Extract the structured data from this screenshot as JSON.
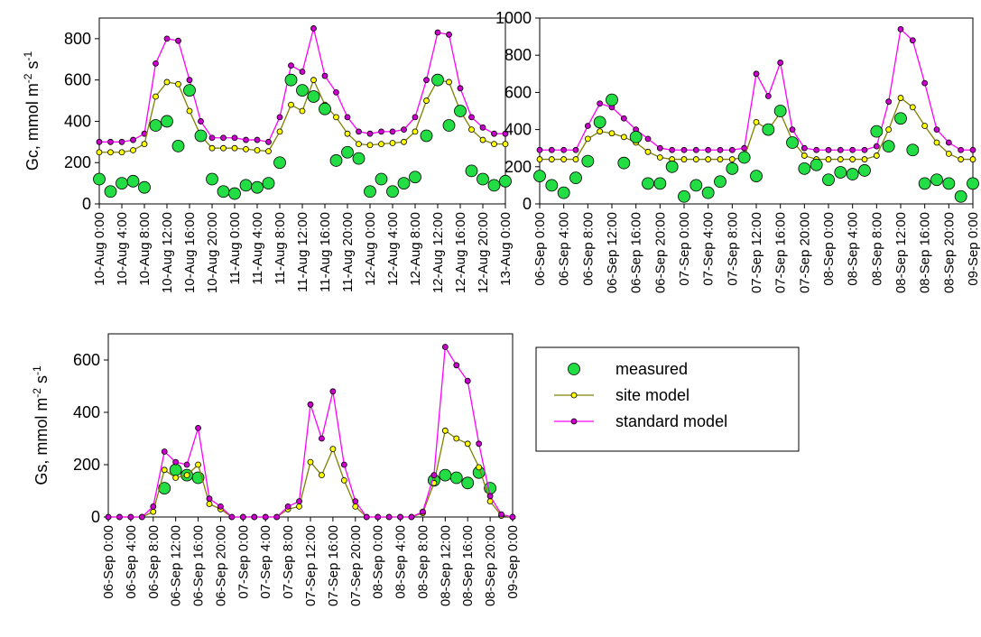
{
  "chart_data": [
    {
      "type": "line",
      "y_label": [
        "Gc, mmol m",
        "-2",
        " s",
        "-1"
      ],
      "x": [
        0,
        2,
        4,
        6,
        8,
        10,
        12,
        14,
        16,
        18,
        20,
        22,
        24,
        26,
        28,
        30,
        32,
        34,
        36,
        38,
        40,
        42,
        44,
        46,
        48,
        50,
        52,
        54,
        56,
        58,
        60,
        62,
        64,
        66,
        68,
        70,
        72
      ],
      "xlim": [
        0,
        72
      ],
      "xticks": [
        {
          "value": 0,
          "label": "10-Aug 0:00"
        },
        {
          "value": 4,
          "label": "10-Aug 4:00"
        },
        {
          "value": 8,
          "label": "10-Aug 8:00"
        },
        {
          "value": 12,
          "label": "10-Aug 12:00"
        },
        {
          "value": 16,
          "label": "10-Aug 16:00"
        },
        {
          "value": 20,
          "label": "10-Aug 20:00"
        },
        {
          "value": 24,
          "label": "11-Aug 0:00"
        },
        {
          "value": 28,
          "label": "11-Aug 4:00"
        },
        {
          "value": 32,
          "label": "11-Aug 8:00"
        },
        {
          "value": 36,
          "label": "11-Aug 12:00"
        },
        {
          "value": 40,
          "label": "11-Aug 16:00"
        },
        {
          "value": 44,
          "label": "11-Aug 20:00"
        },
        {
          "value": 48,
          "label": "12-Aug 0:00"
        },
        {
          "value": 52,
          "label": "12-Aug 4:00"
        },
        {
          "value": 56,
          "label": "12-Aug 8:00"
        },
        {
          "value": 60,
          "label": "12-Aug 12:00"
        },
        {
          "value": 64,
          "label": "12-Aug 16:00"
        },
        {
          "value": 68,
          "label": "12-Aug 20:00"
        },
        {
          "value": 72,
          "label": "13-Aug 0:00"
        }
      ],
      "ylim": [
        0,
        900
      ],
      "yticks": [
        0,
        200,
        400,
        600,
        800
      ],
      "series": [
        {
          "style": "line-markers",
          "color": "#ff00ff",
          "marker_color": "#cc00cc",
          "values": [
            300,
            300,
            300,
            310,
            340,
            680,
            800,
            790,
            600,
            400,
            320,
            320,
            320,
            310,
            310,
            300,
            420,
            670,
            640,
            850,
            620,
            540,
            420,
            350,
            340,
            350,
            350,
            360,
            420,
            600,
            830,
            820,
            560,
            420,
            370,
            340,
            340
          ]
        },
        {
          "style": "line-markers",
          "color": "#808000",
          "marker_color": "#ffff00",
          "values": [
            250,
            250,
            250,
            260,
            290,
            520,
            590,
            580,
            450,
            330,
            270,
            270,
            270,
            265,
            260,
            255,
            350,
            480,
            450,
            600,
            480,
            420,
            340,
            290,
            285,
            290,
            295,
            300,
            350,
            500,
            600,
            590,
            450,
            360,
            310,
            290,
            290
          ]
        },
        {
          "style": "markers",
          "color": "#22dd44",
          "marker_color": "#22dd44",
          "values": [
            120,
            60,
            100,
            110,
            80,
            380,
            400,
            280,
            550,
            330,
            120,
            60,
            50,
            90,
            80,
            100,
            200,
            600,
            550,
            520,
            460,
            210,
            250,
            220,
            60,
            120,
            60,
            100,
            130,
            330,
            600,
            380,
            450,
            160,
            120,
            90,
            110
          ]
        }
      ]
    },
    {
      "type": "line",
      "x": [
        0,
        2,
        4,
        6,
        8,
        10,
        12,
        14,
        16,
        18,
        20,
        22,
        24,
        26,
        28,
        30,
        32,
        34,
        36,
        38,
        40,
        42,
        44,
        46,
        48,
        50,
        52,
        54,
        56,
        58,
        60,
        62,
        64,
        66,
        68,
        70,
        72
      ],
      "xlim": [
        0,
        72
      ],
      "xticks": [
        {
          "value": 0,
          "label": "06-Sep 0:00"
        },
        {
          "value": 4,
          "label": "06-Sep 4:00"
        },
        {
          "value": 8,
          "label": "06-Sep 8:00"
        },
        {
          "value": 12,
          "label": "06-Sep 12:00"
        },
        {
          "value": 16,
          "label": "06-Sep 16:00"
        },
        {
          "value": 20,
          "label": "06-Sep 20:00"
        },
        {
          "value": 24,
          "label": "07-Sep 0:00"
        },
        {
          "value": 28,
          "label": "07-Sep 4:00"
        },
        {
          "value": 32,
          "label": "07-Sep 8:00"
        },
        {
          "value": 36,
          "label": "07-Sep 12:00"
        },
        {
          "value": 40,
          "label": "07-Sep 16:00"
        },
        {
          "value": 44,
          "label": "07-Sep 20:00"
        },
        {
          "value": 48,
          "label": "08-Sep 0:00"
        },
        {
          "value": 52,
          "label": "08-Sep 4:00"
        },
        {
          "value": 56,
          "label": "08-Sep 8:00"
        },
        {
          "value": 60,
          "label": "08-Sep 12:00"
        },
        {
          "value": 64,
          "label": "08-Sep 16:00"
        },
        {
          "value": 68,
          "label": "08-Sep 20:00"
        },
        {
          "value": 72,
          "label": "09-Sep 0:00"
        }
      ],
      "ylim": [
        0,
        1000
      ],
      "yticks": [
        0,
        200,
        400,
        600,
        800,
        1000
      ],
      "series": [
        {
          "style": "line-markers",
          "color": "#ff00ff",
          "marker_color": "#cc00cc",
          "values": [
            290,
            290,
            290,
            290,
            420,
            540,
            520,
            460,
            400,
            350,
            300,
            290,
            290,
            290,
            290,
            290,
            290,
            300,
            700,
            580,
            760,
            400,
            300,
            290,
            290,
            290,
            290,
            290,
            310,
            550,
            940,
            880,
            650,
            400,
            330,
            290,
            290
          ]
        },
        {
          "style": "line-markers",
          "color": "#808000",
          "marker_color": "#ffff00",
          "values": [
            240,
            240,
            240,
            240,
            350,
            390,
            380,
            360,
            330,
            280,
            250,
            240,
            240,
            240,
            240,
            240,
            240,
            250,
            440,
            400,
            490,
            340,
            260,
            240,
            240,
            240,
            240,
            240,
            260,
            400,
            570,
            520,
            420,
            330,
            270,
            240,
            240
          ]
        },
        {
          "style": "markers",
          "color": "#22dd44",
          "marker_color": "#22dd44",
          "values": [
            150,
            100,
            60,
            140,
            230,
            440,
            560,
            220,
            360,
            110,
            110,
            200,
            40,
            100,
            60,
            120,
            190,
            250,
            150,
            400,
            500,
            330,
            190,
            210,
            130,
            170,
            160,
            180,
            390,
            310,
            460,
            290,
            110,
            130,
            110,
            40,
            110
          ]
        }
      ]
    },
    {
      "type": "line",
      "y_label": [
        "Gs, mmol m",
        "-2",
        " s",
        "-1"
      ],
      "legend": "right",
      "x": [
        0,
        2,
        4,
        6,
        8,
        10,
        12,
        14,
        16,
        18,
        20,
        22,
        24,
        26,
        28,
        30,
        32,
        34,
        36,
        38,
        40,
        42,
        44,
        46,
        48,
        50,
        52,
        54,
        56,
        58,
        60,
        62,
        64,
        66,
        68,
        70,
        72
      ],
      "xlim": [
        0,
        72
      ],
      "xticks": [
        {
          "value": 0,
          "label": "06-Sep 0:00"
        },
        {
          "value": 4,
          "label": "06-Sep 4:00"
        },
        {
          "value": 8,
          "label": "06-Sep 8:00"
        },
        {
          "value": 12,
          "label": "06-Sep 12:00"
        },
        {
          "value": 16,
          "label": "06-Sep 16:00"
        },
        {
          "value": 20,
          "label": "06-Sep 20:00"
        },
        {
          "value": 24,
          "label": "07-Sep 0:00"
        },
        {
          "value": 28,
          "label": "07-Sep 4:00"
        },
        {
          "value": 32,
          "label": "07-Sep 8:00"
        },
        {
          "value": 36,
          "label": "07-Sep 12:00"
        },
        {
          "value": 40,
          "label": "07-Sep 16:00"
        },
        {
          "value": 44,
          "label": "07-Sep 20:00"
        },
        {
          "value": 48,
          "label": "08-Sep 0:00"
        },
        {
          "value": 52,
          "label": "08-Sep 4:00"
        },
        {
          "value": 56,
          "label": "08-Sep 8:00"
        },
        {
          "value": 60,
          "label": "08-Sep 12:00"
        },
        {
          "value": 64,
          "label": "08-Sep 16:00"
        },
        {
          "value": 68,
          "label": "08-Sep 20:00"
        },
        {
          "value": 72,
          "label": "09-Sep 0:00"
        }
      ],
      "ylim": [
        0,
        700
      ],
      "yticks": [
        0,
        200,
        400,
        600
      ],
      "series": [
        {
          "name": "measured",
          "style": "markers",
          "color": "#22dd44",
          "marker_color": "#22dd44",
          "values": [
            null,
            null,
            null,
            null,
            null,
            110,
            180,
            160,
            150,
            null,
            null,
            null,
            null,
            null,
            null,
            null,
            null,
            null,
            null,
            null,
            null,
            null,
            null,
            null,
            null,
            null,
            null,
            null,
            null,
            140,
            160,
            150,
            130,
            170,
            110,
            null,
            null
          ]
        },
        {
          "name": "site model",
          "style": "line-markers",
          "color": "#808000",
          "marker_color": "#ffff00",
          "values": [
            0,
            0,
            0,
            0,
            20,
            180,
            150,
            160,
            200,
            50,
            30,
            0,
            0,
            0,
            0,
            0,
            30,
            40,
            210,
            160,
            260,
            140,
            40,
            0,
            0,
            0,
            0,
            0,
            15,
            130,
            330,
            300,
            280,
            190,
            60,
            5,
            0
          ]
        },
        {
          "name": "standard model",
          "style": "line-markers",
          "color": "#ff00ff",
          "marker_color": "#cc00cc",
          "values": [
            0,
            0,
            0,
            0,
            40,
            250,
            210,
            200,
            340,
            70,
            40,
            0,
            0,
            0,
            0,
            0,
            40,
            60,
            430,
            300,
            480,
            200,
            60,
            0,
            0,
            0,
            0,
            0,
            20,
            160,
            650,
            580,
            520,
            280,
            80,
            10,
            0
          ]
        }
      ]
    }
  ]
}
